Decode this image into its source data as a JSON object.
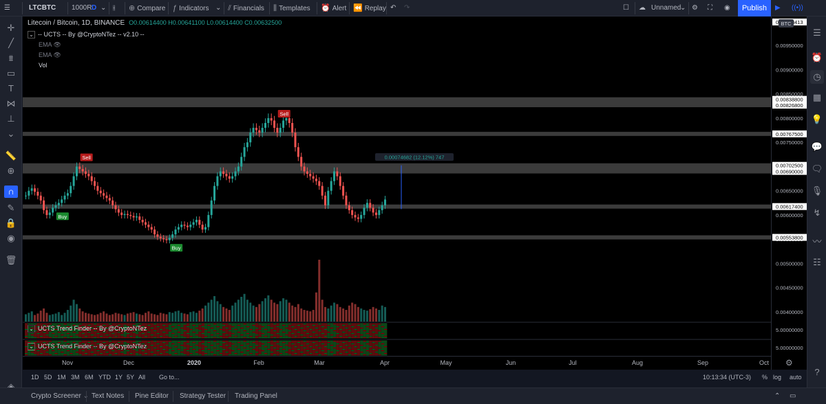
{
  "toolbar": {
    "symbol": "LTCBTC",
    "interval": "1000R",
    "interval_type": "D",
    "compare": "Compare",
    "indicators": "Indicators",
    "financials": "Financials",
    "templates": "Templates",
    "alert": "Alert",
    "replay": "Replay",
    "layout_name": "Unnamed",
    "publish": "Publish"
  },
  "legend": {
    "title": "Litecoin / Bitcoin, 1D, BINANCE",
    "ohlc": "O0.00614400 H0.00641100 L0.00614400 C0.00632500",
    "indicator_name": "-- UCTS -- By @CryptoNTez -- v2.10 --",
    "ema1": "EMA",
    "ema2": "EMA",
    "vol": "Vol",
    "trend1": "UCTS Trend Finder -- By @CryptoNTez",
    "trend2": "UCTS Trend Finder -- By @CryptoNTez"
  },
  "price_scale": {
    "labels": [
      "0.00950000",
      "0.00900000",
      "0.00850000",
      "0.00800000",
      "0.00750000",
      "0.00650000",
      "0.00600000",
      "0.00550000",
      "0.00500000",
      "0.00450000",
      "0.00400000"
    ],
    "zone_labels": [
      "0.00838800",
      "0.00826800",
      "0.00767500",
      "0.00702500",
      "0.00690000",
      "0.00617400",
      "0.00553800"
    ],
    "btc_label": "BTC",
    "top_price": "0.01028413",
    "osc1": "5.00000000",
    "osc2": "5.00000000"
  },
  "chart_data": {
    "type": "candlestick",
    "symbol": "Litecoin / Bitcoin",
    "interval": "1D",
    "exchange": "BINANCE",
    "x_ticks": [
      "Nov",
      "Dec",
      "2020",
      "Feb",
      "Mar",
      "Apr",
      "May",
      "Jun",
      "Jul",
      "Aug",
      "Sep",
      "Oct"
    ],
    "y_range": [
      0.0038,
      0.0099
    ],
    "close_series": [
      0.0064,
      0.0065,
      0.00655,
      0.00648,
      0.0064,
      0.0063,
      0.0061,
      0.006,
      0.00605,
      0.00615,
      0.0062,
      0.00625,
      0.00632,
      0.0064,
      0.00645,
      0.0066,
      0.0068,
      0.007,
      0.00695,
      0.0069,
      0.00685,
      0.0068,
      0.0067,
      0.0066,
      0.0065,
      0.00645,
      0.0064,
      0.00635,
      0.0063,
      0.0062,
      0.00612,
      0.00605,
      0.006,
      0.00602,
      0.006,
      0.00598,
      0.00595,
      0.00597,
      0.0059,
      0.00585,
      0.0058,
      0.00575,
      0.0057,
      0.0056,
      0.00555,
      0.00552,
      0.0055,
      0.00548,
      0.00553,
      0.0056,
      0.0057,
      0.00575,
      0.0058,
      0.00578,
      0.00575,
      0.0058,
      0.00585,
      0.0059,
      0.0058,
      0.0057,
      0.00575,
      0.006,
      0.0063,
      0.0066,
      0.0068,
      0.0069,
      0.00685,
      0.0068,
      0.00675,
      0.0068,
      0.0069,
      0.007,
      0.0072,
      0.0074,
      0.0075,
      0.0077,
      0.0078,
      0.00775,
      0.0077,
      0.0078,
      0.0079,
      0.008,
      0.00795,
      0.0078,
      0.0077,
      0.0078,
      0.00795,
      0.008,
      0.0079,
      0.0077,
      0.0074,
      0.0072,
      0.007,
      0.0069,
      0.00685,
      0.0068,
      0.00675,
      0.0067,
      0.0066,
      0.0064,
      0.0062,
      0.0065,
      0.0067,
      0.0069,
      0.0068,
      0.0066,
      0.0064,
      0.0062,
      0.0061,
      0.006,
      0.00595,
      0.00592,
      0.006,
      0.00615,
      0.00625,
      0.00615,
      0.00605,
      0.006,
      0.0061,
      0.0062,
      0.00632
    ],
    "volume": [
      10,
      12,
      14,
      9,
      11,
      15,
      18,
      12,
      9,
      10,
      11,
      13,
      9,
      12,
      16,
      22,
      30,
      24,
      18,
      14,
      12,
      11,
      10,
      9,
      10,
      12,
      14,
      11,
      9,
      10,
      12,
      11,
      10,
      9,
      11,
      12,
      13,
      11,
      10,
      9,
      12,
      14,
      11,
      10,
      9,
      12,
      11,
      10,
      13,
      12,
      14,
      15,
      12,
      11,
      10,
      13,
      14,
      12,
      15,
      18,
      22,
      26,
      30,
      35,
      28,
      24,
      20,
      18,
      16,
      22,
      26,
      30,
      34,
      38,
      30,
      26,
      22,
      20,
      24,
      28,
      32,
      36,
      30,
      26,
      24,
      28,
      32,
      30,
      26,
      22,
      20,
      24,
      18,
      16,
      15,
      14,
      16,
      40,
      85,
      30,
      20,
      18,
      22,
      26,
      24,
      20,
      18,
      16,
      22,
      26,
      24,
      20,
      18,
      16,
      15,
      17,
      20,
      18,
      16,
      22,
      20
    ],
    "signals": [
      {
        "label": "Buy",
        "index": 11
      },
      {
        "label": "Sell",
        "index": 19
      },
      {
        "label": "Buy",
        "index": 49
      },
      {
        "label": "Sell",
        "index": 85
      }
    ],
    "measure_label": "0.00074682 (12.12%) 747"
  },
  "time_axis": {
    "ticks": [
      "Nov",
      "Dec",
      "2020",
      "Feb",
      "Mar",
      "Apr",
      "May",
      "Jun",
      "Jul",
      "Aug",
      "Sep",
      "Oct"
    ]
  },
  "range_bar": {
    "ranges": [
      "1D",
      "5D",
      "1M",
      "3M",
      "6M",
      "YTD",
      "1Y",
      "5Y",
      "All"
    ],
    "goto": "Go to...",
    "clock": "10:13:34 (UTC-3)",
    "pct": "%",
    "log": "log",
    "auto": "auto"
  },
  "bottom_panel": {
    "tabs": [
      "Crypto Screener",
      "Text Notes",
      "Pine Editor",
      "Strategy Tester",
      "Trading Panel"
    ]
  },
  "colors": {
    "up": "#26a69a",
    "down": "#ef5350",
    "zone": "#6b6b6b",
    "accent": "#2962ff"
  }
}
